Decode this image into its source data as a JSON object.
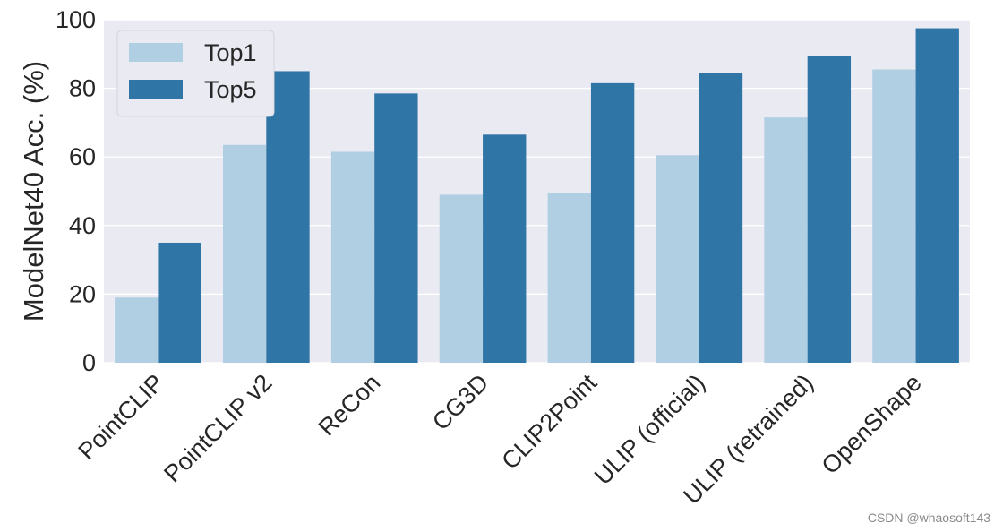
{
  "chart_data": {
    "type": "bar",
    "categories": [
      "PointCLIP",
      "PointCLIP v2",
      "ReCon",
      "CG3D",
      "CLIP2Point",
      "ULIP (official)",
      "ULIP (retrained)",
      "OpenShape"
    ],
    "series": [
      {
        "name": "Top1",
        "color": "#b1cfe2",
        "values": [
          19,
          63.5,
          61.5,
          49,
          49.5,
          60.5,
          71.5,
          85.5
        ]
      },
      {
        "name": "Top5",
        "color": "#2f75a6",
        "values": [
          35,
          85,
          78.5,
          66.5,
          81.5,
          84.5,
          89.5,
          97.5
        ]
      }
    ],
    "ylabel": "ModelNet40 Acc. (%)",
    "xlabel": "",
    "ylim": [
      0,
      100
    ],
    "yticks": [
      0,
      20,
      40,
      60,
      80,
      100
    ],
    "grid": true,
    "legend_position": "top-left",
    "background": "#eaeaf2"
  },
  "watermark": "CSDN @whaosoft143"
}
